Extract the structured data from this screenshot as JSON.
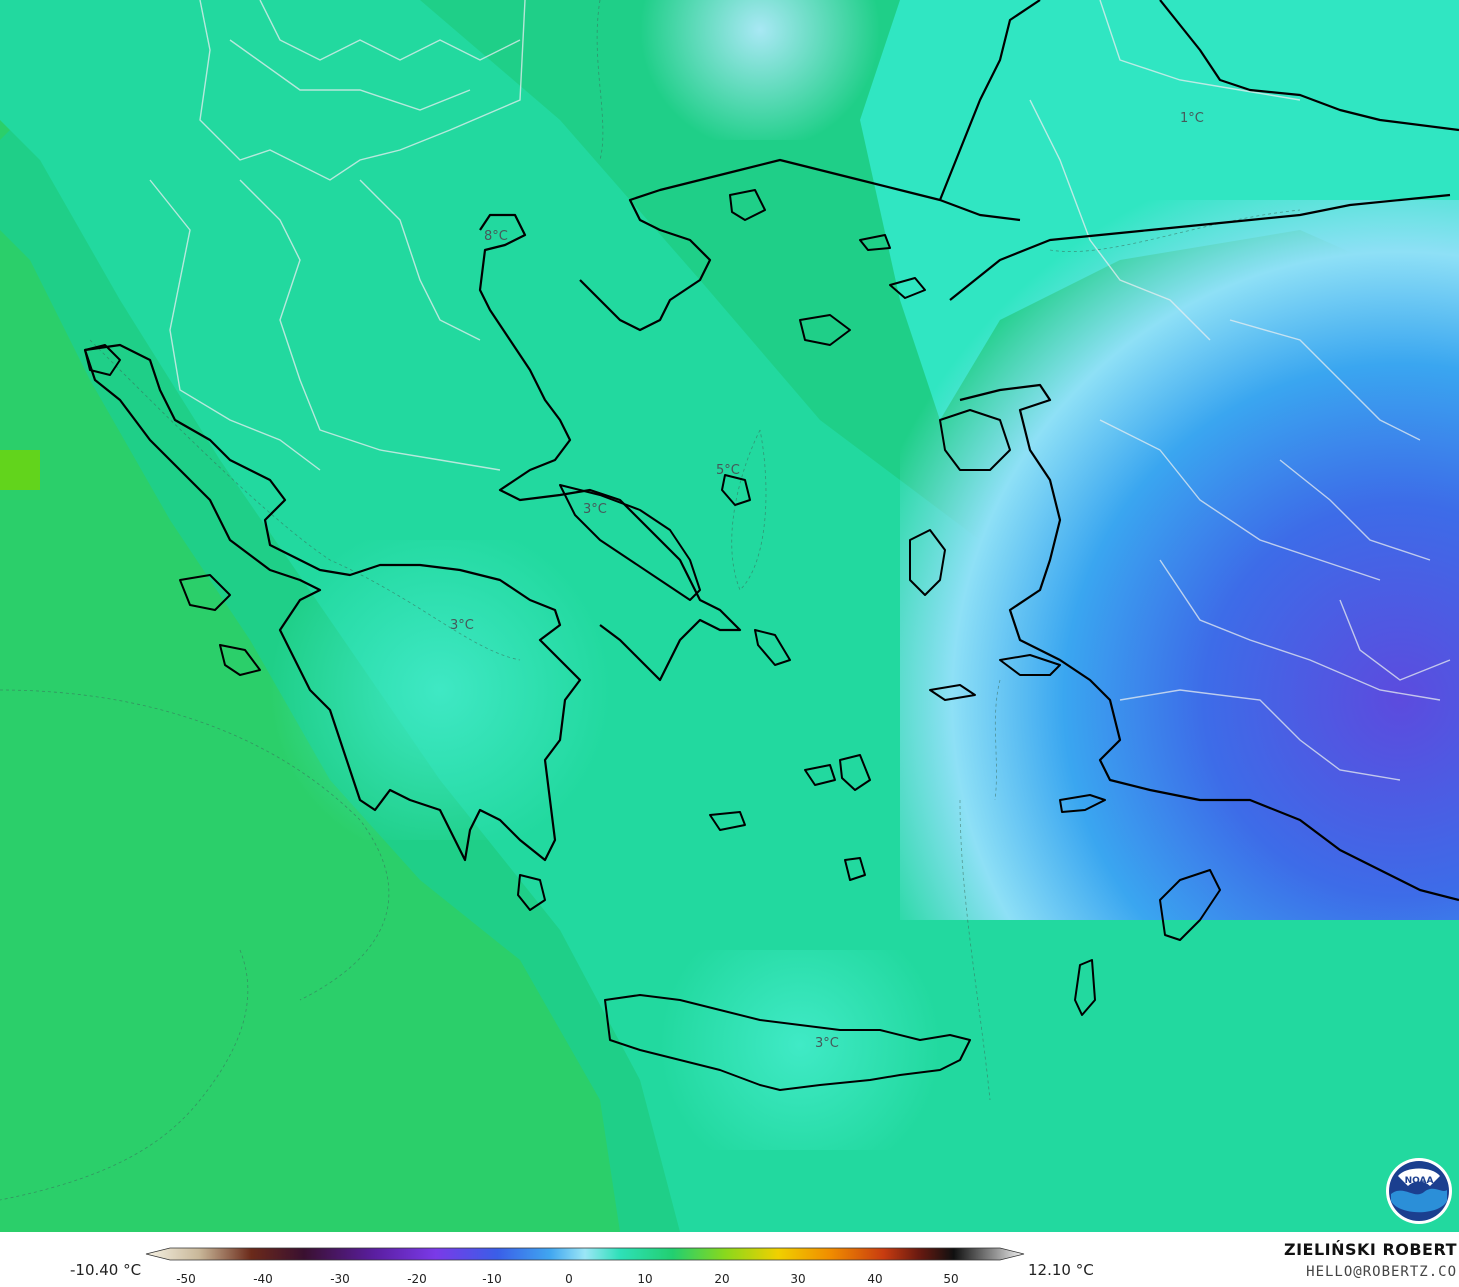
{
  "map": {
    "labels": [
      {
        "text": "1°C"
      },
      {
        "text": "8°C"
      },
      {
        "text": "5°C"
      },
      {
        "text": "3°C"
      },
      {
        "text": "3°C"
      },
      {
        "text": "3°C"
      }
    ],
    "colors": {
      "sea_west": "#2bcf6a",
      "mainland": "#25d9a4",
      "cold_east": "#3a6fe8",
      "coldest": "#5a4ce0",
      "coast": "#000000"
    }
  },
  "legend": {
    "min_value": "-10.40 °C",
    "max_value": "12.10 °C",
    "ticks": [
      "-50",
      "-40",
      "-30",
      "-20",
      "-10",
      "0",
      "10",
      "20",
      "30",
      "40",
      "50"
    ]
  },
  "credit": {
    "name": "ZIELIŃSKI ROBERT",
    "email": "HELLO@ROBERTZ.CO"
  },
  "logo": {
    "icon": "noaa-logo-icon",
    "text": "NOAA"
  }
}
